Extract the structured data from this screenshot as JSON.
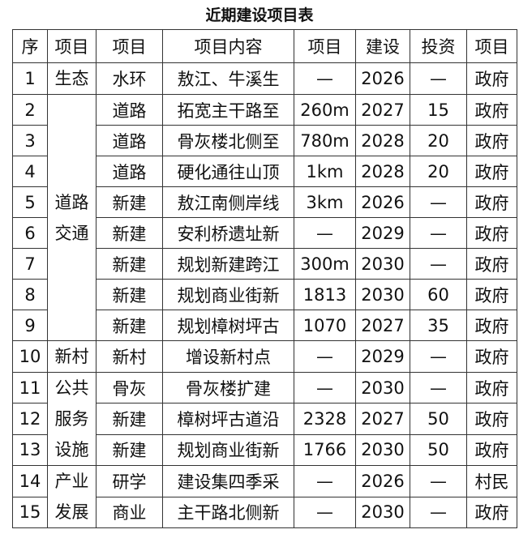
{
  "title": "近期建设项目表",
  "headers": [
    "序",
    "项目",
    "项目",
    "项目内容",
    "项目",
    "建设",
    "投资",
    "项目"
  ],
  "categories": {
    "eco": "生态",
    "road": [
      "道路",
      "交通"
    ],
    "village": "新村",
    "public": [
      "公共",
      "服务",
      "设施"
    ],
    "industry": [
      "产业",
      "发展"
    ]
  },
  "rows": [
    {
      "no": "1",
      "type": "水环",
      "content": "敖江、牛溪生",
      "scale": "—",
      "year": "2026",
      "invest": "—",
      "owner": "政府"
    },
    {
      "no": "2",
      "type": "道路",
      "content": "拓宽主干路至",
      "scale": "260m",
      "year": "2027",
      "invest": "15",
      "owner": "政府"
    },
    {
      "no": "3",
      "type": "道路",
      "content": "骨灰楼北侧至",
      "scale": "780m",
      "year": "2028",
      "invest": "20",
      "owner": "政府"
    },
    {
      "no": "4",
      "type": "道路",
      "content": "硬化通往山顶",
      "scale": "1km",
      "year": "2028",
      "invest": "20",
      "owner": "政府"
    },
    {
      "no": "5",
      "type": "新建",
      "content": "敖江南侧岸线",
      "scale": "3km",
      "year": "2026",
      "invest": "—",
      "owner": "政府"
    },
    {
      "no": "6",
      "type": "新建",
      "content": "安利桥遗址新",
      "scale": "—",
      "year": "2029",
      "invest": "—",
      "owner": "政府"
    },
    {
      "no": "7",
      "type": "新建",
      "content": "规划新建跨江",
      "scale": "300m",
      "year": "2030",
      "invest": "—",
      "owner": "政府"
    },
    {
      "no": "8",
      "type": "新建",
      "content": "规划商业街新",
      "scale": "1813",
      "year": "2030",
      "invest": "60",
      "owner": "政府"
    },
    {
      "no": "9",
      "type": "新建",
      "content": "规划樟树坪古",
      "scale": "1070",
      "year": "2027",
      "invest": "35",
      "owner": "政府"
    },
    {
      "no": "10",
      "type": "新村",
      "content": "增设新村点",
      "scale": "—",
      "year": "2029",
      "invest": "—",
      "owner": "政府"
    },
    {
      "no": "11",
      "type": "骨灰",
      "content": "骨灰楼扩建",
      "scale": "—",
      "year": "2030",
      "invest": "—",
      "owner": "政府"
    },
    {
      "no": "12",
      "type": "新建",
      "content": "樟树坪古道沿",
      "scale": "2328",
      "year": "2027",
      "invest": "50",
      "owner": "政府"
    },
    {
      "no": "13",
      "type": "新建",
      "content": "规划商业街新",
      "scale": "1766",
      "year": "2030",
      "invest": "50",
      "owner": "政府"
    },
    {
      "no": "14",
      "type": "研学",
      "content": "建设集四季采",
      "scale": "—",
      "year": "2026",
      "invest": "—",
      "owner": "村民"
    },
    {
      "no": "15",
      "type": "商业",
      "content": "主干路北侧新",
      "scale": "—",
      "year": "2030",
      "invest": "—",
      "owner": "政府"
    }
  ]
}
